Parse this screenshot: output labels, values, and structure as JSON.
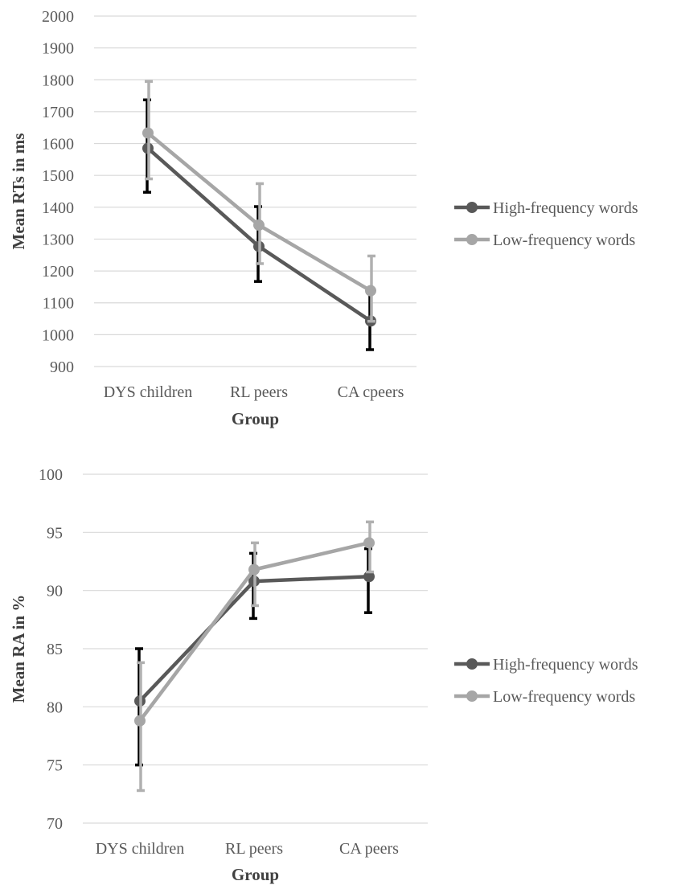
{
  "chart_data": [
    {
      "type": "line",
      "title": "",
      "xlabel": "Group",
      "ylabel": "Mean RTs in ms",
      "categories": [
        "DYS children",
        "RL peers",
        "CA cpeers"
      ],
      "ylim": [
        900,
        2000
      ],
      "yticks": [
        900,
        1000,
        1100,
        1200,
        1300,
        1400,
        1500,
        1600,
        1700,
        1800,
        1900,
        2000
      ],
      "grid": true,
      "legend_position": "right",
      "series": [
        {
          "name": "High-frequency words",
          "color": "#595959",
          "values": [
            1585,
            1277,
            1043
          ],
          "error_low": [
            1447,
            1167,
            953
          ],
          "error_high": [
            1737,
            1402,
            1133
          ]
        },
        {
          "name": "Low-frequency words",
          "color": "#a6a6a6",
          "values": [
            1633,
            1344,
            1138
          ],
          "error_low": [
            1489,
            1223,
            1042
          ],
          "error_high": [
            1795,
            1474,
            1247
          ]
        }
      ]
    },
    {
      "type": "line",
      "title": "",
      "xlabel": "Group",
      "ylabel": "Mean RA in %",
      "categories": [
        "DYS children",
        "RL peers",
        "CA peers"
      ],
      "ylim": [
        70,
        100
      ],
      "yticks": [
        70,
        75,
        80,
        85,
        90,
        95,
        100
      ],
      "grid": true,
      "legend_position": "right",
      "series": [
        {
          "name": "High-frequency words",
          "color": "#595959",
          "values": [
            80.5,
            90.8,
            91.2
          ],
          "error_low": [
            75.0,
            87.6,
            88.1
          ],
          "error_high": [
            85.0,
            93.2,
            93.6
          ]
        },
        {
          "name": "Low-frequency words",
          "color": "#a6a6a6",
          "values": [
            78.8,
            91.8,
            94.1
          ],
          "error_low": [
            72.8,
            88.7,
            91.6
          ],
          "error_high": [
            83.8,
            94.1,
            95.9
          ]
        }
      ]
    }
  ]
}
